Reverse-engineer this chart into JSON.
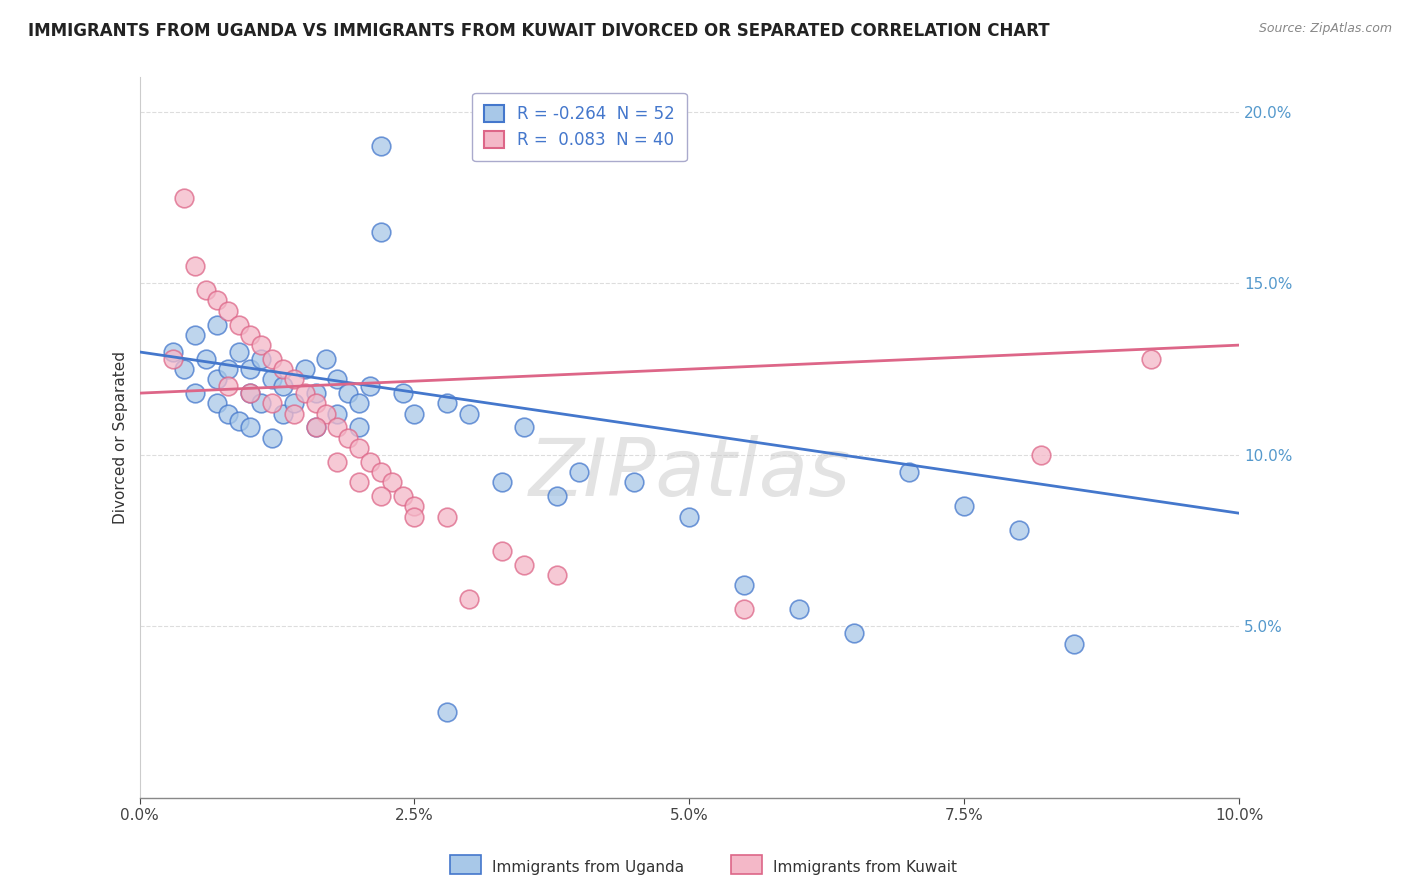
{
  "title": "IMMIGRANTS FROM UGANDA VS IMMIGRANTS FROM KUWAIT DIVORCED OR SEPARATED CORRELATION CHART",
  "source": "Source: ZipAtlas.com",
  "ylabel": "Divorced or Separated",
  "legend_entry1": "R = -0.264  N = 52",
  "legend_entry2": "R =  0.083  N = 40",
  "legend_label1": "Immigrants from Uganda",
  "legend_label2": "Immigrants from Kuwait",
  "color_uganda": "#a8c8e8",
  "color_kuwait": "#f4b8c8",
  "line_color_uganda": "#4477cc",
  "line_color_kuwait": "#dd6688",
  "watermark": "ZIPatlas",
  "xlim": [
    0.0,
    0.1
  ],
  "ylim": [
    0.0,
    0.21
  ],
  "yticks": [
    0.0,
    0.05,
    0.1,
    0.15,
    0.2
  ],
  "xticks": [
    0.0,
    0.025,
    0.05,
    0.075,
    0.1
  ],
  "uganda_x": [
    0.003,
    0.004,
    0.005,
    0.005,
    0.006,
    0.007,
    0.007,
    0.007,
    0.008,
    0.008,
    0.009,
    0.009,
    0.01,
    0.01,
    0.01,
    0.011,
    0.011,
    0.012,
    0.012,
    0.013,
    0.013,
    0.014,
    0.015,
    0.016,
    0.016,
    0.017,
    0.018,
    0.018,
    0.019,
    0.02,
    0.02,
    0.021,
    0.022,
    0.024,
    0.025,
    0.028,
    0.03,
    0.033,
    0.035,
    0.038,
    0.04,
    0.045,
    0.05,
    0.055,
    0.06,
    0.065,
    0.07,
    0.075,
    0.08,
    0.085,
    0.022,
    0.028
  ],
  "uganda_y": [
    0.13,
    0.125,
    0.118,
    0.135,
    0.128,
    0.122,
    0.138,
    0.115,
    0.125,
    0.112,
    0.13,
    0.11,
    0.125,
    0.118,
    0.108,
    0.128,
    0.115,
    0.122,
    0.105,
    0.12,
    0.112,
    0.115,
    0.125,
    0.118,
    0.108,
    0.128,
    0.122,
    0.112,
    0.118,
    0.115,
    0.108,
    0.12,
    0.165,
    0.118,
    0.112,
    0.115,
    0.112,
    0.092,
    0.108,
    0.088,
    0.095,
    0.092,
    0.082,
    0.062,
    0.055,
    0.048,
    0.095,
    0.085,
    0.078,
    0.045,
    0.19,
    0.025
  ],
  "kuwait_x": [
    0.003,
    0.004,
    0.005,
    0.006,
    0.007,
    0.008,
    0.009,
    0.01,
    0.011,
    0.012,
    0.013,
    0.014,
    0.015,
    0.016,
    0.017,
    0.018,
    0.019,
    0.02,
    0.021,
    0.022,
    0.023,
    0.024,
    0.025,
    0.028,
    0.03,
    0.033,
    0.035,
    0.038,
    0.008,
    0.01,
    0.012,
    0.014,
    0.016,
    0.018,
    0.02,
    0.022,
    0.025,
    0.055,
    0.082,
    0.092
  ],
  "kuwait_y": [
    0.128,
    0.175,
    0.155,
    0.148,
    0.145,
    0.142,
    0.138,
    0.135,
    0.132,
    0.128,
    0.125,
    0.122,
    0.118,
    0.115,
    0.112,
    0.108,
    0.105,
    0.102,
    0.098,
    0.095,
    0.092,
    0.088,
    0.085,
    0.082,
    0.058,
    0.072,
    0.068,
    0.065,
    0.12,
    0.118,
    0.115,
    0.112,
    0.108,
    0.098,
    0.092,
    0.088,
    0.082,
    0.055,
    0.1,
    0.128
  ],
  "uganda_line_x": [
    0.0,
    0.1
  ],
  "uganda_line_y": [
    0.13,
    0.083
  ],
  "kuwait_line_x": [
    0.0,
    0.1
  ],
  "kuwait_line_y": [
    0.118,
    0.132
  ],
  "background_color": "#ffffff",
  "grid_color": "#dddddd",
  "title_fontsize": 12,
  "axis_fontsize": 11,
  "tick_fontsize": 11
}
